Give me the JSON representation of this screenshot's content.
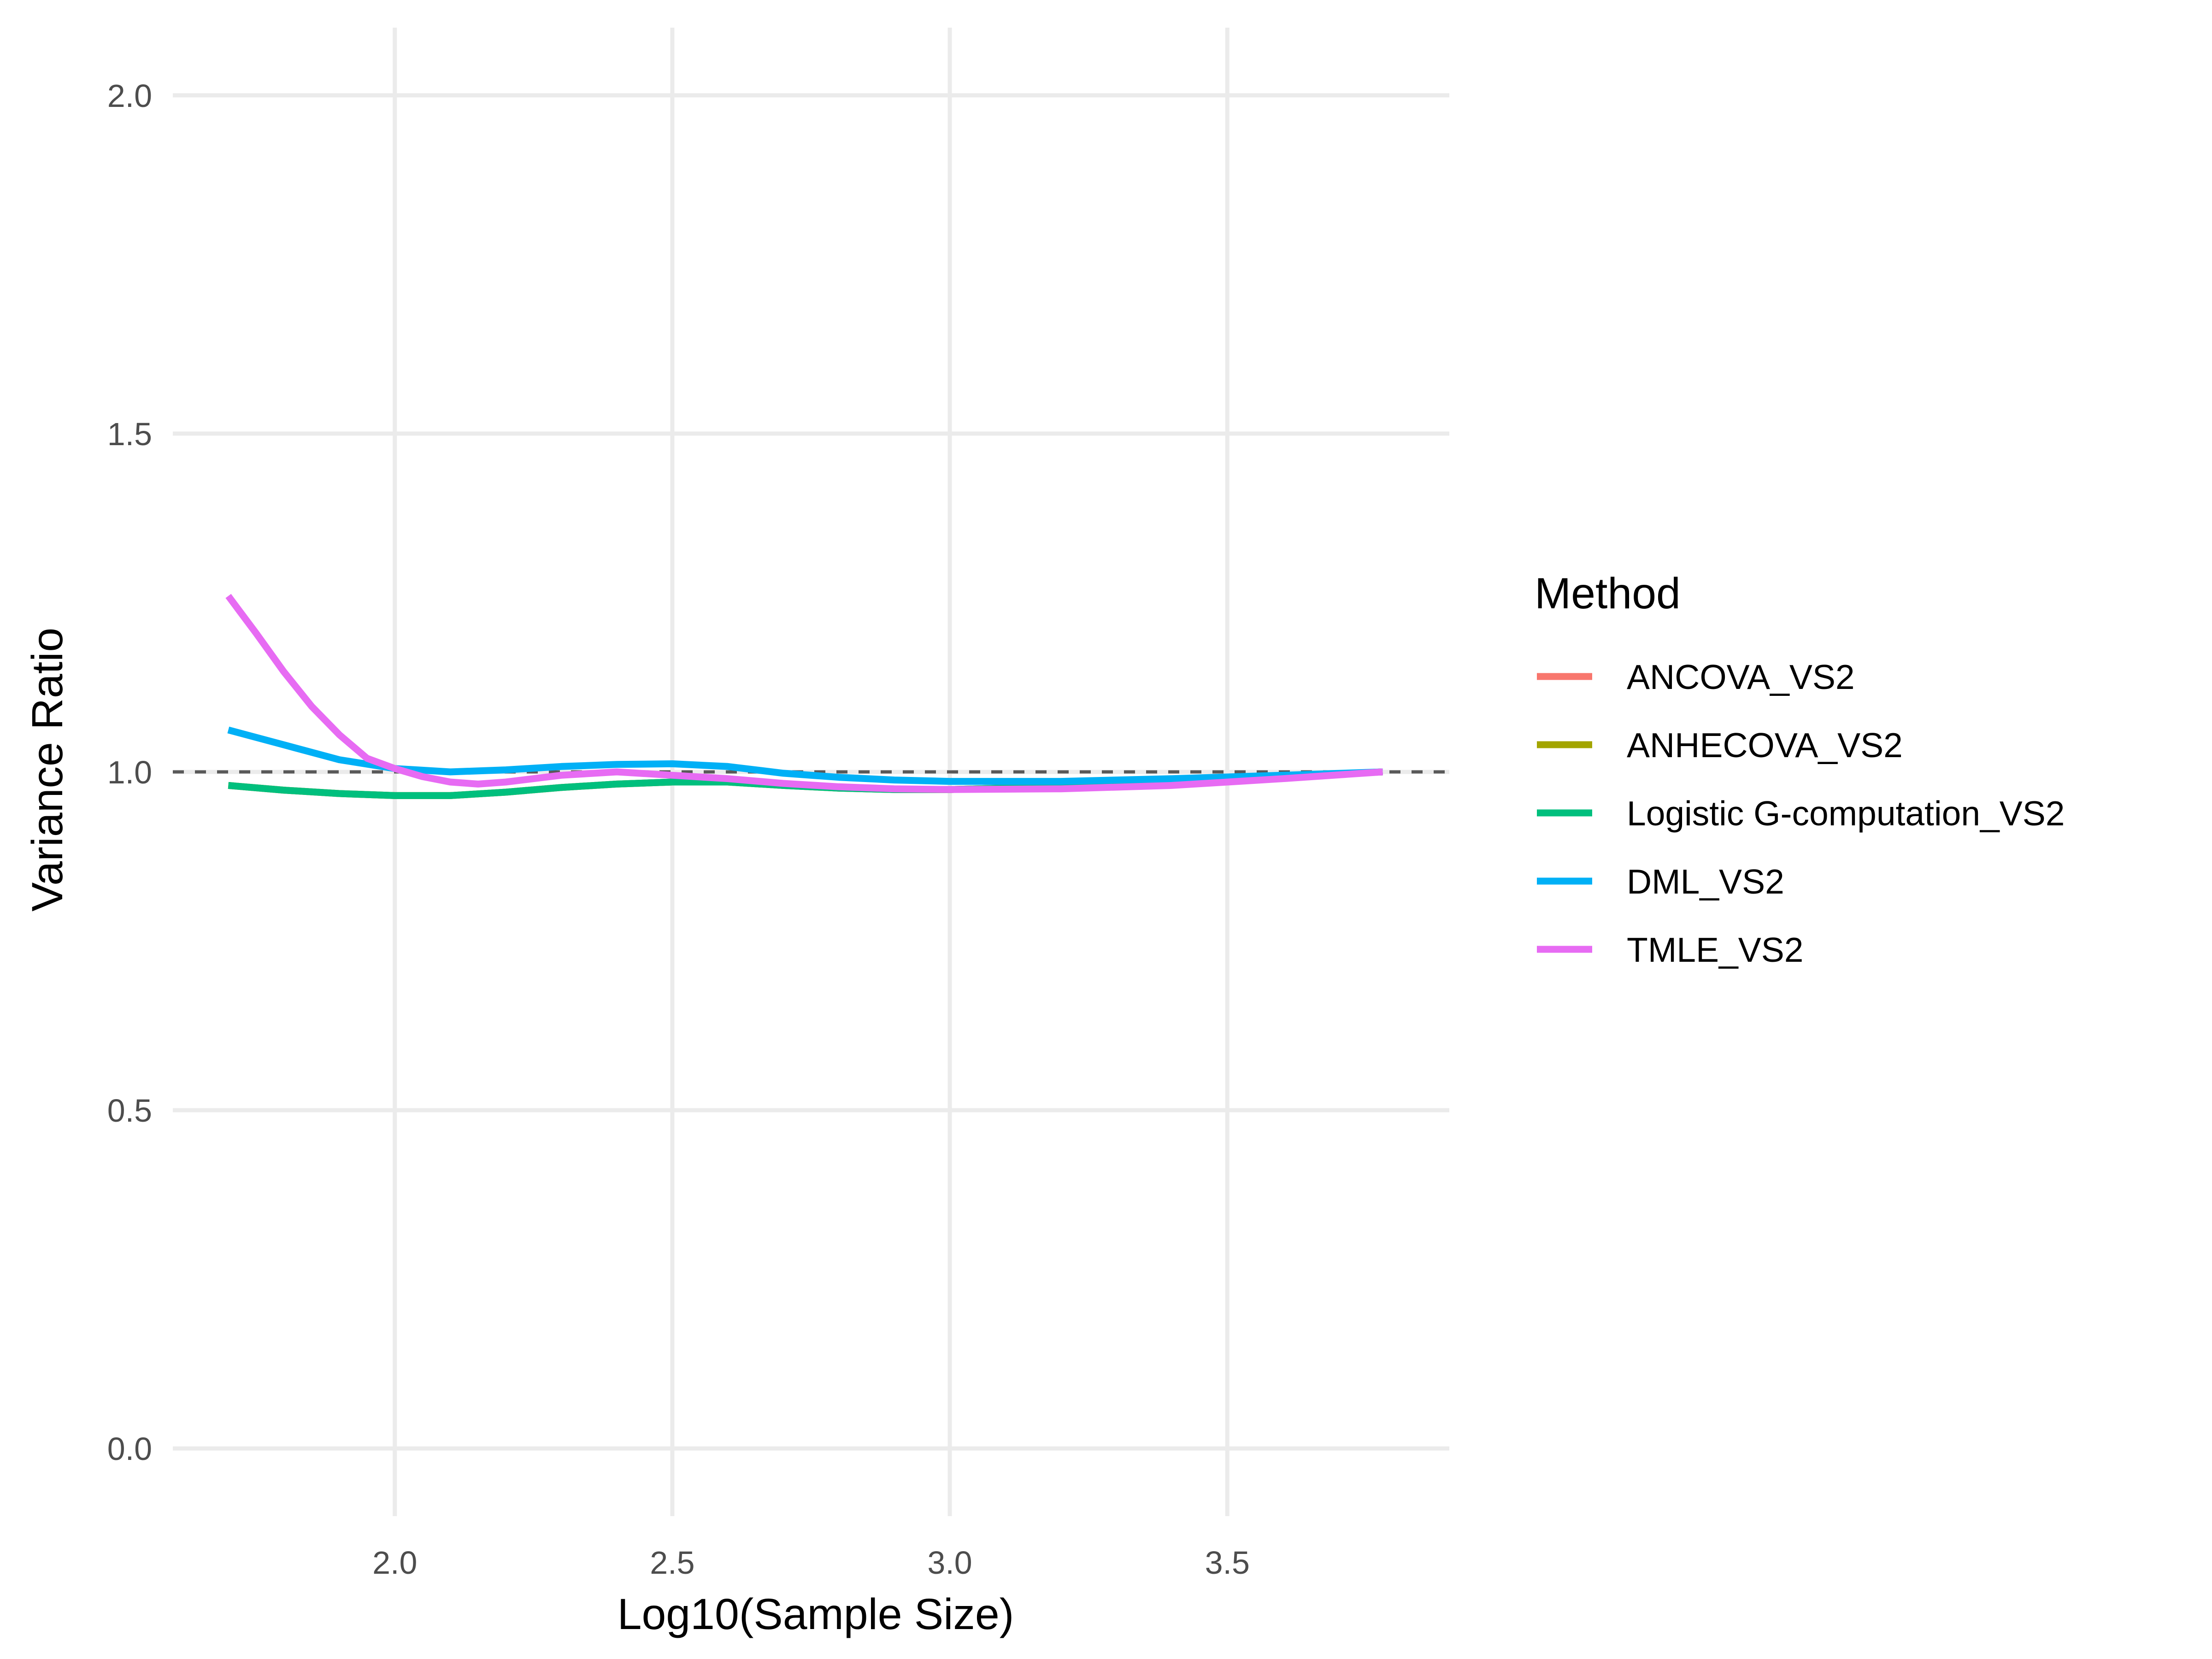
{
  "chart_data": {
    "type": "line",
    "title": "",
    "xlabel": "Log10(Sample Size)",
    "ylabel": "Variance Ratio",
    "xlim": [
      1.6,
      3.9
    ],
    "ylim": [
      -0.1,
      2.1
    ],
    "x_ticks": [
      2.0,
      2.5,
      3.0,
      3.5
    ],
    "x_tick_labels": [
      "2.0",
      "2.5",
      "3.0",
      "3.5"
    ],
    "y_ticks": [
      0.0,
      0.5,
      1.0,
      1.5,
      2.0
    ],
    "y_tick_labels": [
      "0.0",
      "0.5",
      "1.0",
      "1.5",
      "2.0"
    ],
    "grid": true,
    "reference_line": {
      "y": 1.0,
      "style": "dashed",
      "color": "#595959"
    },
    "legend": {
      "title": "Method",
      "position": "right"
    },
    "series": [
      {
        "name": "ANCOVA_VS2",
        "color": "#F8766D",
        "x": [
          1.7,
          1.8,
          1.9,
          2.0,
          2.1,
          2.2,
          2.3,
          2.4,
          2.5,
          2.6,
          2.7,
          2.8,
          2.9,
          3.0,
          3.2,
          3.4,
          3.6,
          3.78
        ],
        "y": [
          0.98,
          0.973,
          0.968,
          0.965,
          0.965,
          0.97,
          0.977,
          0.982,
          0.985,
          0.985,
          0.98,
          0.976,
          0.974,
          0.974,
          0.978,
          0.985,
          0.993,
          1.0
        ]
      },
      {
        "name": "ANHECOVA_VS2",
        "color": "#A3A500",
        "x": [
          1.7,
          1.8,
          1.9,
          2.0,
          2.1,
          2.2,
          2.3,
          2.4,
          2.5,
          2.6,
          2.7,
          2.8,
          2.9,
          3.0,
          3.2,
          3.4,
          3.6,
          3.78
        ],
        "y": [
          0.98,
          0.973,
          0.968,
          0.965,
          0.965,
          0.97,
          0.977,
          0.982,
          0.985,
          0.985,
          0.98,
          0.976,
          0.974,
          0.974,
          0.978,
          0.985,
          0.993,
          1.0
        ]
      },
      {
        "name": "Logistic G-computation_VS2",
        "color": "#00BF7D",
        "x": [
          1.7,
          1.8,
          1.9,
          2.0,
          2.1,
          2.2,
          2.3,
          2.4,
          2.5,
          2.6,
          2.7,
          2.8,
          2.9,
          3.0,
          3.2,
          3.4,
          3.6,
          3.78
        ],
        "y": [
          0.98,
          0.973,
          0.968,
          0.965,
          0.965,
          0.97,
          0.977,
          0.982,
          0.985,
          0.985,
          0.98,
          0.976,
          0.974,
          0.974,
          0.978,
          0.985,
          0.993,
          1.0
        ]
      },
      {
        "name": "DML_VS2",
        "color": "#00B0F6",
        "x": [
          1.7,
          1.8,
          1.9,
          2.0,
          2.1,
          2.2,
          2.3,
          2.4,
          2.5,
          2.6,
          2.7,
          2.8,
          2.9,
          3.0,
          3.2,
          3.4,
          3.6,
          3.78
        ],
        "y": [
          1.062,
          1.04,
          1.018,
          1.005,
          1.0,
          1.003,
          1.008,
          1.011,
          1.012,
          1.008,
          0.998,
          0.992,
          0.988,
          0.986,
          0.986,
          0.99,
          0.995,
          1.0
        ]
      },
      {
        "name": "TMLE_VS2",
        "color": "#E76BF3",
        "x": [
          1.7,
          1.75,
          1.8,
          1.85,
          1.9,
          1.95,
          2.0,
          2.05,
          2.1,
          2.15,
          2.2,
          2.3,
          2.4,
          2.5,
          2.6,
          2.7,
          2.8,
          2.9,
          3.0,
          3.2,
          3.4,
          3.6,
          3.78
        ],
        "y": [
          1.26,
          1.205,
          1.148,
          1.097,
          1.055,
          1.02,
          1.005,
          0.993,
          0.985,
          0.982,
          0.985,
          0.995,
          1.0,
          0.995,
          0.99,
          0.983,
          0.978,
          0.975,
          0.974,
          0.975,
          0.98,
          0.99,
          1.0
        ]
      }
    ]
  }
}
